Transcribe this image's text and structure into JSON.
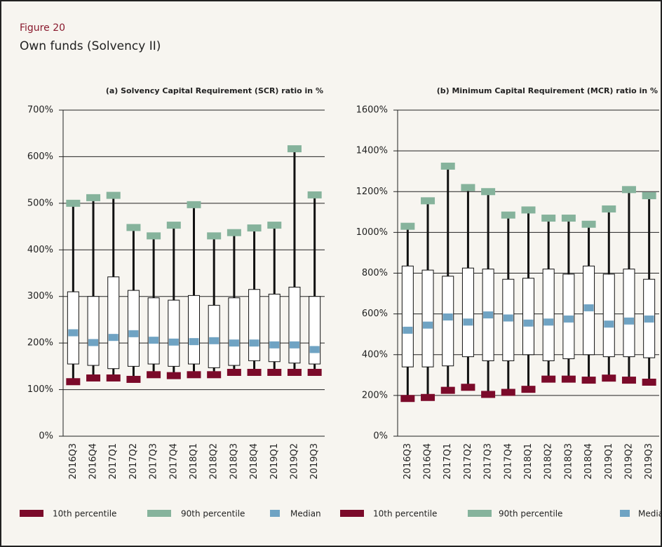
{
  "header": {
    "figure": "Figure 20",
    "title": "Own funds (Solvency II)"
  },
  "chart_data": [
    {
      "type": "box",
      "title": "(a) Solvency Capital Requirement (SCR) ratio in %",
      "categories": [
        "2016Q3",
        "2016Q4",
        "2017Q1",
        "2017Q2",
        "2017Q3",
        "2017Q4",
        "2018Q1",
        "2018Q2",
        "2018Q3",
        "2018Q4",
        "2019Q1",
        "2019Q2",
        "2019Q3"
      ],
      "series": [
        {
          "name": "10th percentile",
          "color": "#7b0a2a",
          "values": [
            117,
            125,
            125,
            122,
            132,
            130,
            132,
            132,
            137,
            137,
            137,
            137,
            137
          ]
        },
        {
          "name": "90th percentile",
          "color": "#86b39c",
          "values": [
            500,
            512,
            517,
            448,
            430,
            453,
            497,
            430,
            437,
            447,
            453,
            617,
            518
          ]
        },
        {
          "name": "Median",
          "color": "#6fa3c3",
          "values": [
            222,
            201,
            212,
            220,
            206,
            202,
            203,
            205,
            200,
            200,
            196,
            196,
            186
          ]
        }
      ],
      "p25": [
        155,
        152,
        145,
        150,
        155,
        150,
        155,
        147,
        152,
        162,
        160,
        157,
        155
      ],
      "p75": [
        310,
        300,
        342,
        313,
        297,
        292,
        302,
        281,
        297,
        315,
        305,
        320,
        300
      ],
      "ylim": [
        0,
        700
      ],
      "yticks": [
        {
          "value": 0,
          "label": "0%"
        },
        {
          "value": 100,
          "label": "100%"
        },
        {
          "value": 200,
          "label": "200%"
        },
        {
          "value": 300,
          "label": "300%"
        },
        {
          "value": 400,
          "label": "400%"
        },
        {
          "value": 500,
          "label": "500%"
        },
        {
          "value": 600,
          "label": "600%"
        },
        {
          "value": 700,
          "label": "700%"
        }
      ],
      "grid": true
    },
    {
      "type": "box",
      "title": "(b) Minimum Capital Requirement (MCR) ratio in %",
      "categories": [
        "2016Q3",
        "2016Q4",
        "2017Q1",
        "2017Q2",
        "2017Q3",
        "2017Q4",
        "2018Q1",
        "2018Q2",
        "2018Q3",
        "2018Q4",
        "2019Q1",
        "2019Q2",
        "2019Q3"
      ],
      "series": [
        {
          "name": "10th percentile",
          "color": "#7b0a2a",
          "values": [
            185,
            190,
            225,
            240,
            205,
            215,
            230,
            280,
            280,
            275,
            285,
            275,
            265
          ]
        },
        {
          "name": "90th percentile",
          "color": "#86b39c",
          "values": [
            1030,
            1155,
            1325,
            1220,
            1200,
            1085,
            1110,
            1070,
            1070,
            1040,
            1115,
            1210,
            1180
          ]
        },
        {
          "name": "Median",
          "color": "#6fa3c3",
          "values": [
            520,
            545,
            585,
            560,
            595,
            580,
            555,
            560,
            575,
            630,
            550,
            565,
            575
          ]
        }
      ],
      "p25": [
        340,
        340,
        345,
        390,
        370,
        370,
        400,
        370,
        380,
        400,
        390,
        390,
        385
      ],
      "p75": [
        835,
        815,
        785,
        825,
        820,
        770,
        775,
        820,
        795,
        835,
        795,
        820,
        770
      ],
      "ylim": [
        0,
        1600
      ],
      "yticks": [
        {
          "value": 0,
          "label": "0%"
        },
        {
          "value": 200,
          "label": "200%"
        },
        {
          "value": 400,
          "label": "400%"
        },
        {
          "value": 600,
          "label": "600%"
        },
        {
          "value": 800,
          "label": "800%"
        },
        {
          "value": 1000,
          "label": "1000%"
        },
        {
          "value": 1200,
          "label": "1200%"
        },
        {
          "value": 1400,
          "label": "1400%"
        },
        {
          "value": 1600,
          "label": "1600%"
        }
      ],
      "grid": true
    }
  ]
}
